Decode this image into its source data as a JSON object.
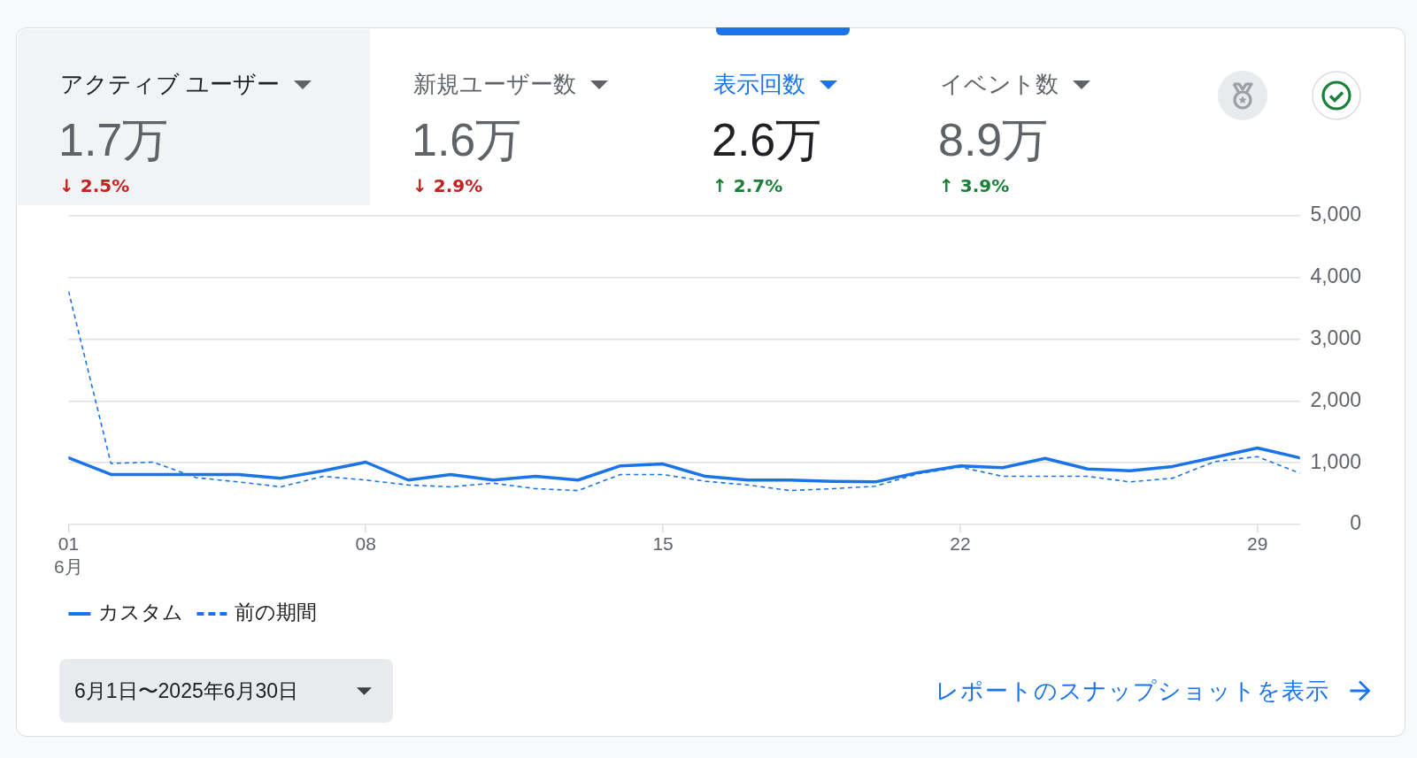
{
  "chart_data": [
    {
      "type": "other",
      "annotations": [
        "アクティブ ユーザー",
        "1.7万",
        "↓ 2.5%",
        "新規ユーザー数",
        "1.6万",
        "↓ 2.9%",
        "表示回数",
        "2.6万",
        "↑ 2.7%",
        "イベント数",
        "8.9万",
        "↑ 3.9%"
      ],
      "colors": [
        "#202124",
        "#5f6368",
        "#c5221f",
        "#5f6368",
        "#5f6368",
        "#c5221f",
        "#1a73e8",
        "#202124",
        "#188038",
        "#5f6368",
        "#5f6368",
        "#188038"
      ]
    },
    {
      "type": "line",
      "x": [
        "--06-01",
        "--06-02",
        "--06-03",
        "--06-04",
        "--06-05",
        "--06-06",
        "--06-07",
        "--06-08",
        "--06-09",
        "--06-10",
        "--06-11",
        "--06-12",
        "--06-13",
        "--06-14",
        "--06-15",
        "--06-16",
        "--06-17",
        "--06-18",
        "--06-19",
        "--06-20",
        "--06-21",
        "--06-22",
        "--06-23",
        "--06-24",
        "--06-25",
        "--06-26",
        "--06-27",
        "--06-28",
        "--06-29",
        "--06-30"
      ],
      "series": [
        {
          "name": "カスタム",
          "color": "#1a73e8",
          "line_style": "solid",
          "values": [
            1080,
            810,
            810,
            810,
            810,
            750,
            870,
            1010,
            720,
            810,
            720,
            780,
            720,
            950,
            980,
            780,
            720,
            720,
            700,
            690,
            840,
            950,
            920,
            1070,
            900,
            870,
            940,
            1090,
            1240,
            1080
          ]
        },
        {
          "name": "前の期間",
          "color": "#1a73e8",
          "line_style": "dashed",
          "values": [
            3780,
            990,
            1010,
            760,
            690,
            610,
            780,
            720,
            640,
            610,
            670,
            580,
            550,
            810,
            810,
            700,
            640,
            550,
            580,
            620,
            820,
            930,
            780,
            780,
            780,
            690,
            750,
            1020,
            1100,
            830
          ]
        }
      ],
      "xlim": [
        "--06-01",
        "--06-30"
      ],
      "xticks": [
        {
          "value": "--06-01",
          "label": "01\n6月"
        },
        {
          "value": "--06-08",
          "label": "08"
        },
        {
          "value": "--06-15",
          "label": "15"
        },
        {
          "value": "--06-22",
          "label": "22"
        },
        {
          "value": "--06-29",
          "label": "29"
        }
      ],
      "ylim": [
        0,
        5000
      ],
      "yticks": [
        0,
        {
          "value": 1000,
          "label": "1,000"
        },
        {
          "value": 2000,
          "label": "2,000"
        },
        {
          "value": 3000,
          "label": "3,000"
        },
        {
          "value": 4000,
          "label": "4,000"
        },
        {
          "value": 5000,
          "label": "5,000"
        }
      ],
      "grid": "y",
      "legend": "bottom left",
      "marker": "none",
      "annotations": [
        "6月1日〜2025年6月30日",
        "レポートのスナップショットを表示"
      ]
    }
  ]
}
